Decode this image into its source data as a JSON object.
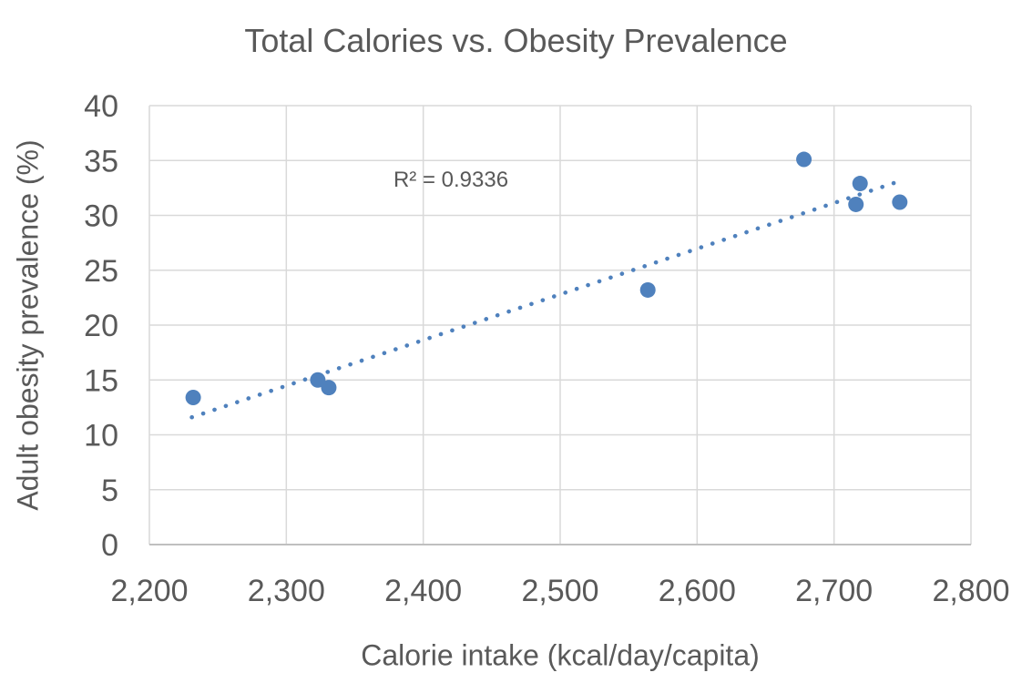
{
  "chart_data": {
    "type": "scatter",
    "title": "Total Calories vs. Obesity Prevalence",
    "xlabel": "Calorie intake (kcal/day/capita)",
    "ylabel": "Adult obesity prevalence (%)",
    "xlim": [
      2200,
      2800
    ],
    "ylim": [
      0,
      40
    ],
    "x_ticks": [
      2200,
      2300,
      2400,
      2500,
      2600,
      2700,
      2800
    ],
    "x_tick_labels": [
      "2,200",
      "2,300",
      "2,400",
      "2,500",
      "2,600",
      "2,700",
      "2,800"
    ],
    "y_ticks": [
      0,
      5,
      10,
      15,
      20,
      25,
      30,
      35,
      40
    ],
    "y_tick_labels": [
      "0",
      "5",
      "10",
      "15",
      "20",
      "25",
      "30",
      "35",
      "40"
    ],
    "grid": true,
    "legend": "none",
    "points": [
      {
        "x": 2232,
        "y": 13.4
      },
      {
        "x": 2323,
        "y": 15.0
      },
      {
        "x": 2331,
        "y": 14.3
      },
      {
        "x": 2564,
        "y": 23.2
      },
      {
        "x": 2678,
        "y": 35.1
      },
      {
        "x": 2716,
        "y": 31.0
      },
      {
        "x": 2719,
        "y": 32.9
      },
      {
        "x": 2748,
        "y": 31.2
      }
    ],
    "trendline": {
      "style": "dotted",
      "x_start": 2231,
      "y_start": 11.6,
      "x_end": 2745,
      "y_end": 33.0
    },
    "annotation": {
      "text": "R² = 0.9336",
      "r_squared": 0.9336
    },
    "colors": {
      "marker": "#4F81BD",
      "trendline": "#4F81BD",
      "gridline": "#D9D9D9",
      "axis_line": "#BFBFBF",
      "text": "#595959",
      "background": "#FFFFFF"
    }
  }
}
